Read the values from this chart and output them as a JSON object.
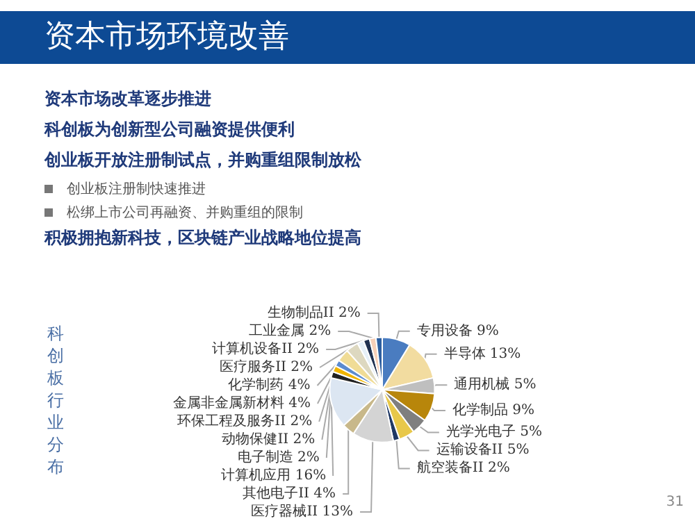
{
  "chart_data": {
    "type": "pie",
    "title": "资本市场环境改善",
    "subtitle": "科创板行业分布",
    "annotations": [
      "资本市场改革逐步推进",
      "科创板为创新型公司融资提供便利",
      "创业板开放注册制试点，并购重组限制放松",
      "创业板注册制快速推进",
      "松绑上市公司再融资、并购重组的限制",
      "积极拥抱新科技，区块链产业战略地位提高",
      "31"
    ],
    "categories": [
      "专用设备",
      "半导体",
      "通用机械",
      "化学制品",
      "光学光电子",
      "运输设备II",
      "航空装备II",
      "医疗器械II",
      "其他电子II",
      "计算机应用",
      "电子制造",
      "动物保健II",
      "环保工程及服务II",
      "金属非金属新材料",
      "化学制药",
      "医疗服务II",
      "计算机设备II",
      "工业金属",
      "生物制品II"
    ],
    "values": [
      9,
      13,
      5,
      9,
      5,
      5,
      2,
      13,
      4,
      16,
      2,
      2,
      2,
      4,
      4,
      2,
      2,
      2,
      2
    ],
    "value_labels": [
      "9%",
      "13%",
      "5%",
      "9%",
      "5%",
      "5%",
      "2%",
      "13%",
      "4%",
      "16%",
      "2%",
      "2%",
      "2%",
      "4%",
      "4%",
      "2%",
      "2%",
      "2%",
      "2%"
    ],
    "colors": [
      "#4a7cc0",
      "#f2dca0",
      "#bfbfbf",
      "#b8860b",
      "#7f7f7f",
      "#e8c84a",
      "#1f3864",
      "#d4d4d4",
      "#c8b88a",
      "#dce6f2",
      "#222222",
      "#f0b400",
      "#5b8bd0",
      "#f0dc96",
      "#ddd8c0",
      "#e6f0f8",
      "#1f3050",
      "#f8d0b8",
      "#2e5fa0"
    ],
    "legend": false
  }
}
